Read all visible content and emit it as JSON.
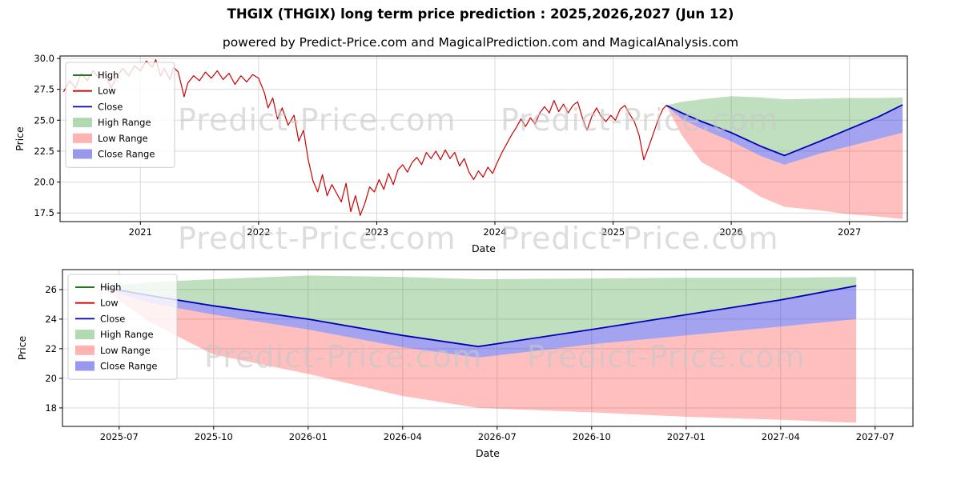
{
  "title": "THGIX (THGIX) long term price prediction : 2025,2026,2027 (Jun 12)",
  "subtitle": "powered by Predict-Price.com and MagicalPrediction.com and MagicalAnalysis.com",
  "watermark": {
    "text": "Predict-Price.com"
  },
  "colors": {
    "high_line": "#006400",
    "low_line": "#cc0000",
    "close_line": "#0000b4",
    "high_range": "rgba(0,128,0,0.25)",
    "low_range": "rgba(255,0,0,0.25)",
    "close_range": "rgba(50,50,220,0.45)",
    "grid": "#d9d9d9",
    "axis": "#000000",
    "watermark": "#c8c8c8"
  },
  "legend": [
    {
      "label": "High",
      "type": "line",
      "color": "#006400"
    },
    {
      "label": "Low",
      "type": "line",
      "color": "#cc0000"
    },
    {
      "label": "Close",
      "type": "line",
      "color": "#0000b4"
    },
    {
      "label": "High Range",
      "type": "patch",
      "color": "rgba(0,128,0,0.3)"
    },
    {
      "label": "Low Range",
      "type": "patch",
      "color": "rgba(255,0,0,0.3)"
    },
    {
      "label": "Close Range",
      "type": "patch",
      "color": "rgba(50,50,220,0.5)"
    }
  ],
  "chart_data": [
    {
      "type": "line",
      "title": "",
      "xlabel": "Date",
      "ylabel": "Price",
      "xlim": [
        2020.32,
        2027.49
      ],
      "ylim": [
        16.8,
        30.2
      ],
      "grid": true,
      "legend_position": "upper left",
      "xticks": {
        "values": [
          2021,
          2022,
          2023,
          2024,
          2025,
          2026,
          2027
        ],
        "labels": [
          "2021",
          "2022",
          "2023",
          "2024",
          "2025",
          "2026",
          "2027"
        ]
      },
      "yticks": {
        "values": [
          17.5,
          20.0,
          22.5,
          25.0,
          27.5,
          30.0
        ],
        "labels": [
          "17.5",
          "20.0",
          "22.5",
          "25.0",
          "27.5",
          "30.0"
        ]
      },
      "series": {
        "history": {
          "name": "historical price (High/Low/Close overlapping)",
          "x": [
            2020.35,
            2020.4,
            2020.45,
            2020.5,
            2020.55,
            2020.6,
            2020.65,
            2020.7,
            2020.75,
            2020.8,
            2020.85,
            2020.9,
            2020.95,
            2021.0,
            2021.05,
            2021.1,
            2021.13,
            2021.17,
            2021.2,
            2021.25,
            2021.28,
            2021.32,
            2021.37,
            2021.4,
            2021.45,
            2021.5,
            2021.55,
            2021.6,
            2021.65,
            2021.7,
            2021.75,
            2021.8,
            2021.85,
            2021.9,
            2021.95,
            2022.0,
            2022.05,
            2022.08,
            2022.12,
            2022.16,
            2022.2,
            2022.25,
            2022.3,
            2022.34,
            2022.38,
            2022.42,
            2022.46,
            2022.5,
            2022.54,
            2022.58,
            2022.62,
            2022.66,
            2022.7,
            2022.74,
            2022.78,
            2022.82,
            2022.86,
            2022.9,
            2022.94,
            2022.98,
            2023.02,
            2023.06,
            2023.1,
            2023.14,
            2023.18,
            2023.22,
            2023.26,
            2023.3,
            2023.34,
            2023.38,
            2023.42,
            2023.46,
            2023.5,
            2023.54,
            2023.58,
            2023.62,
            2023.66,
            2023.7,
            2023.74,
            2023.78,
            2023.82,
            2023.86,
            2023.9,
            2023.94,
            2023.98,
            2024.02,
            2024.06,
            2024.1,
            2024.14,
            2024.18,
            2024.22,
            2024.26,
            2024.3,
            2024.34,
            2024.38,
            2024.42,
            2024.46,
            2024.5,
            2024.54,
            2024.58,
            2024.62,
            2024.66,
            2024.7,
            2024.74,
            2024.78,
            2024.82,
            2024.86,
            2024.9,
            2024.94,
            2024.98,
            2025.02,
            2025.06,
            2025.1,
            2025.14,
            2025.18,
            2025.22,
            2025.26,
            2025.3,
            2025.34,
            2025.38,
            2025.42,
            2025.45
          ],
          "y": [
            27.3,
            28.2,
            27.6,
            28.8,
            28.2,
            29.0,
            28.4,
            28.9,
            27.6,
            28.5,
            29.2,
            28.6,
            29.4,
            29.0,
            29.8,
            29.3,
            29.9,
            28.6,
            29.2,
            28.3,
            29.3,
            28.9,
            26.9,
            28.0,
            28.6,
            28.2,
            28.9,
            28.4,
            29.0,
            28.3,
            28.8,
            27.9,
            28.6,
            28.1,
            28.7,
            28.4,
            27.2,
            26.0,
            26.8,
            25.1,
            26.0,
            24.6,
            25.4,
            23.3,
            24.2,
            21.8,
            20.1,
            19.2,
            20.6,
            18.9,
            19.8,
            19.1,
            18.4,
            19.9,
            17.6,
            18.9,
            17.3,
            18.3,
            19.6,
            19.2,
            20.2,
            19.4,
            20.7,
            19.8,
            21.0,
            21.4,
            20.8,
            21.6,
            22.0,
            21.4,
            22.4,
            21.9,
            22.5,
            21.8,
            22.6,
            21.9,
            22.4,
            21.3,
            21.9,
            20.8,
            20.2,
            20.9,
            20.4,
            21.2,
            20.7,
            21.6,
            22.4,
            23.1,
            23.8,
            24.4,
            25.1,
            24.5,
            25.2,
            24.7,
            25.6,
            26.1,
            25.6,
            26.6,
            25.7,
            26.3,
            25.6,
            26.2,
            26.5,
            25.2,
            24.2,
            25.3,
            26.0,
            25.3,
            24.9,
            25.4,
            25.0,
            25.9,
            26.2,
            25.5,
            24.9,
            23.8,
            21.8,
            22.8,
            23.9,
            25.0,
            25.9,
            26.2
          ]
        },
        "forecast": {
          "x": [
            2025.45,
            2025.58,
            2025.75,
            2026.0,
            2026.25,
            2026.45,
            2026.75,
            2027.0,
            2027.25,
            2027.45
          ],
          "high": [
            26.2,
            26.5,
            26.7,
            26.95,
            26.85,
            26.7,
            26.75,
            26.8,
            26.8,
            26.85
          ],
          "close": [
            26.2,
            25.6,
            24.9,
            24.0,
            22.9,
            22.15,
            23.3,
            24.3,
            25.3,
            26.25
          ],
          "close_low": [
            26.2,
            25.1,
            24.3,
            23.3,
            22.1,
            21.4,
            22.3,
            22.9,
            23.5,
            24.0
          ],
          "low": [
            26.2,
            23.8,
            21.6,
            20.3,
            18.8,
            18.0,
            17.7,
            17.4,
            17.2,
            17.0
          ]
        }
      }
    },
    {
      "type": "line",
      "title": "",
      "xlabel": "Date",
      "ylabel": "Price",
      "xlim": [
        2025.35,
        2027.6
      ],
      "ylim": [
        16.75,
        27.35
      ],
      "grid": true,
      "legend_position": "upper left",
      "xticks": {
        "values": [
          2025.5,
          2025.75,
          2026.0,
          2026.25,
          2026.5,
          2026.75,
          2027.0,
          2027.25,
          2027.5
        ],
        "labels": [
          "2025-07",
          "2025-10",
          "2026-01",
          "2026-04",
          "2026-07",
          "2026-10",
          "2027-01",
          "2027-04",
          "2027-07"
        ]
      },
      "yticks": {
        "values": [
          18,
          20,
          22,
          24,
          26
        ],
        "labels": [
          "18",
          "20",
          "22",
          "24",
          "26"
        ]
      },
      "series": {
        "forecast": {
          "x": [
            2025.45,
            2025.58,
            2025.75,
            2026.0,
            2026.25,
            2026.45,
            2026.75,
            2027.0,
            2027.25,
            2027.45
          ],
          "high": [
            26.2,
            26.5,
            26.7,
            26.95,
            26.85,
            26.7,
            26.75,
            26.8,
            26.8,
            26.85
          ],
          "close": [
            26.2,
            25.6,
            24.9,
            24.0,
            22.9,
            22.15,
            23.3,
            24.3,
            25.3,
            26.25
          ],
          "close_low": [
            26.2,
            25.1,
            24.3,
            23.3,
            22.1,
            21.4,
            22.3,
            22.9,
            23.5,
            24.0
          ],
          "low": [
            26.2,
            23.8,
            21.6,
            20.3,
            18.8,
            18.0,
            17.7,
            17.4,
            17.2,
            17.0
          ]
        }
      }
    }
  ]
}
